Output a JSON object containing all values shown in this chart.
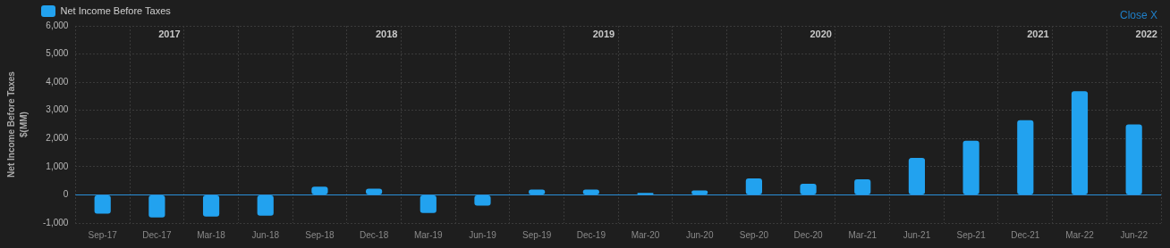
{
  "chart_data": {
    "type": "bar",
    "categories": [
      "Sep-17",
      "Dec-17",
      "Mar-18",
      "Jun-18",
      "Sep-18",
      "Dec-18",
      "Mar-19",
      "Jun-19",
      "Sep-19",
      "Dec-19",
      "Mar-20",
      "Jun-20",
      "Sep-20",
      "Dec-20",
      "Mar-21",
      "Jun-21",
      "Sep-21",
      "Dec-21",
      "Mar-22",
      "Jun-22"
    ],
    "series": [
      {
        "name": "Net Income Before Taxes",
        "color": "#22a2ef",
        "values": [
          -670,
          -800,
          -770,
          -740,
          290,
          220,
          -640,
          -380,
          190,
          190,
          70,
          160,
          580,
          390,
          550,
          1310,
          1920,
          2650,
          3680,
          2500
        ]
      }
    ],
    "ylabel": "Net Income Before Taxes\n$(MM)",
    "ylim": [
      -1000,
      6000
    ],
    "yticks": [
      {
        "value": -1000,
        "label": "-1,000"
      },
      0,
      {
        "value": 1000,
        "label": "1,000"
      },
      {
        "value": 2000,
        "label": "2,000"
      },
      {
        "value": 3000,
        "label": "3,000"
      },
      {
        "value": 4000,
        "label": "4,000"
      },
      {
        "value": 5000,
        "label": "5,000"
      },
      {
        "value": 6000,
        "label": "6,000"
      }
    ],
    "ref_lines": [
      {
        "axis": "y",
        "value": 0,
        "color": "#2a8fd8"
      }
    ],
    "annotations": [
      "2017",
      "2018",
      "2019",
      "2020",
      "2021",
      "2022",
      "Close X"
    ],
    "grid": true,
    "legend": "top left"
  }
}
